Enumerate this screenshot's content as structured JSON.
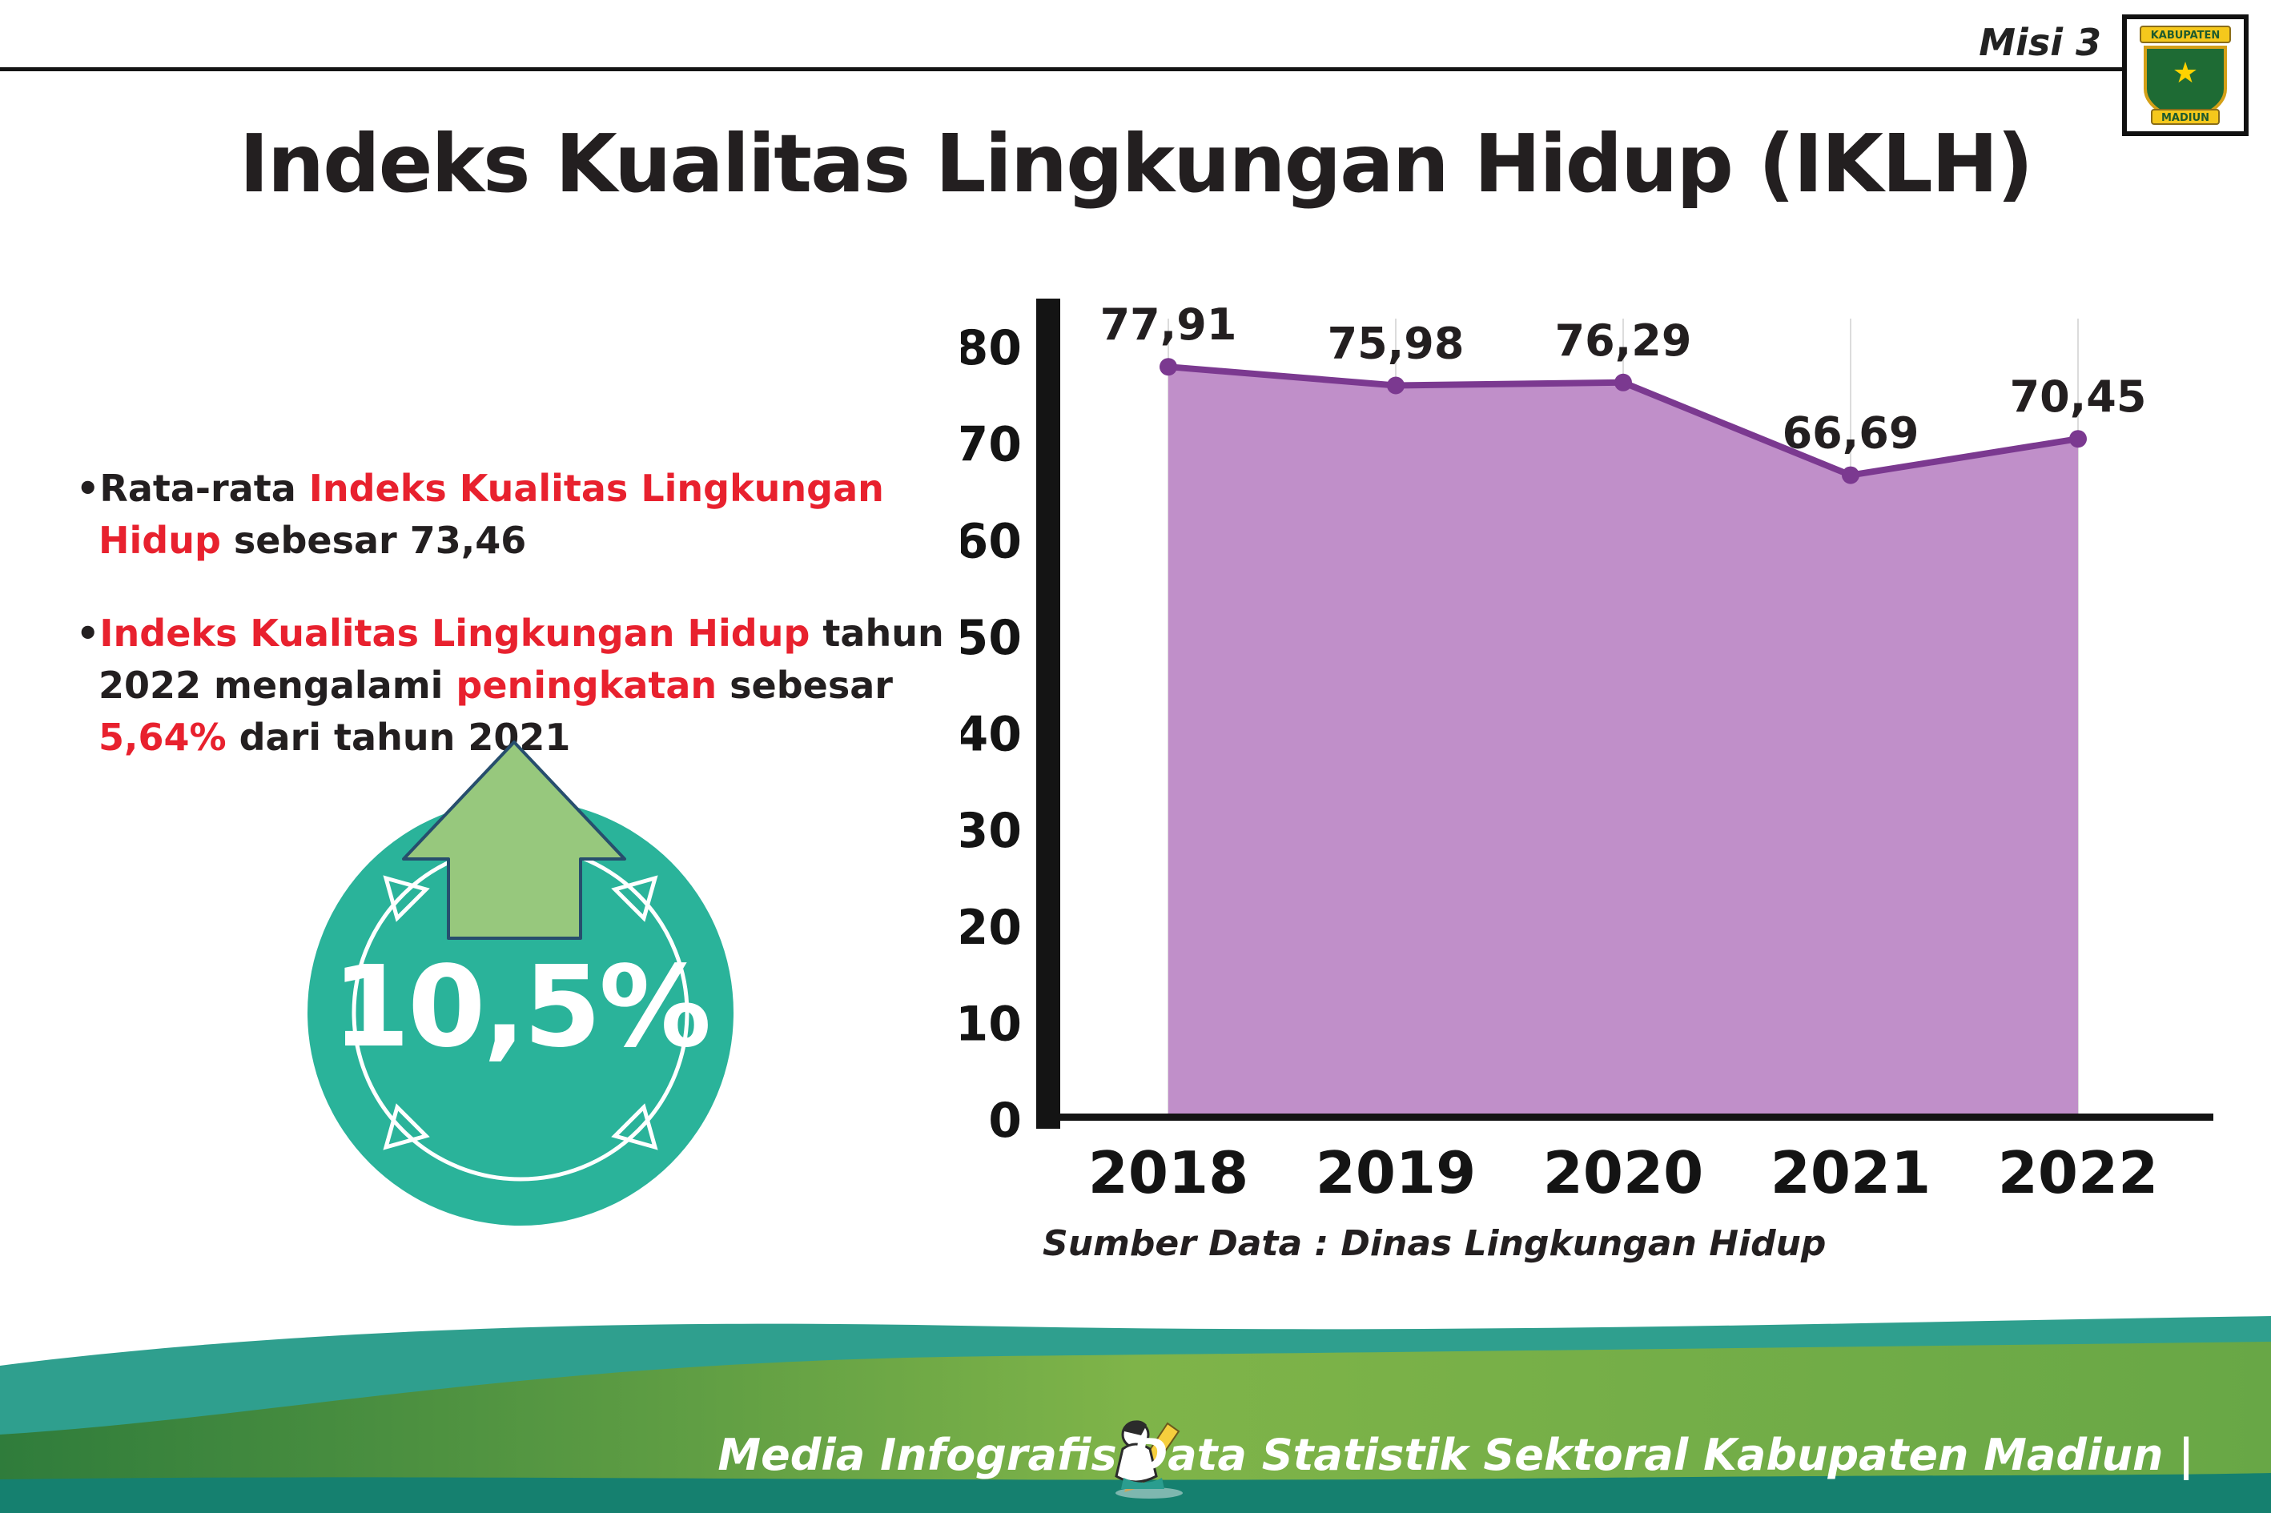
{
  "header": {
    "misi": "Misi 3",
    "title": "Indeks Kualitas Lingkungan Hidup (IKLH)",
    "logo": {
      "top": "KABUPATEN",
      "bottom": "MADIUN"
    }
  },
  "bullets": [
    {
      "segments": [
        {
          "t": "Rata-rata ",
          "c": "dark"
        },
        {
          "t": "Indeks Kualitas Lingkungan Hidup",
          "c": "red"
        },
        {
          "t": " sebesar 73,46",
          "c": "dark"
        }
      ]
    },
    {
      "segments": [
        {
          "t": "Indeks Kualitas Lingkungan Hidup",
          "c": "red"
        },
        {
          "t": " tahun 2022 mengalami ",
          "c": "dark"
        },
        {
          "t": "peningkatan",
          "c": "red"
        },
        {
          "t": " sebesar ",
          "c": "dark"
        },
        {
          "t": "5,64%",
          "c": "red"
        },
        {
          "t": " dari tahun 2021",
          "c": "dark"
        }
      ]
    }
  ],
  "highlight": {
    "value": "10,5%",
    "icon": "up-arrow"
  },
  "chart_data": {
    "type": "area",
    "title": "Indeks Kualitas Lingkungan Hidup (IKLH)",
    "categories": [
      "2018",
      "2019",
      "2020",
      "2021",
      "2022"
    ],
    "values": [
      77.91,
      75.98,
      76.29,
      66.69,
      70.45
    ],
    "point_labels": [
      "77,91",
      "75,98",
      "76,29",
      "66,69",
      "70,45"
    ],
    "xlabel": "",
    "ylabel": "",
    "ylim": [
      0,
      80
    ],
    "yticks": [
      0,
      10,
      20,
      30,
      40,
      50,
      60,
      70,
      80
    ],
    "grid": "vertical-light",
    "legend": "none",
    "source": "Sumber Data : Dinas Lingkungan Hidup",
    "colors": {
      "area_fill": "#c08fc9",
      "line": "#7b3990",
      "axis": "#141414",
      "grid": "#dcdcdc"
    }
  },
  "footer": {
    "caption": "Media Infografis Data Statistik Sektoral Kabupaten Madiun |"
  },
  "palette": {
    "red": "#e8212e",
    "dark": "#231f20",
    "teal_circle": "#2ab39a",
    "arrow_green": "#97c87d",
    "arrow_outline": "#274e6d",
    "footer_teal": "#2f9f8e",
    "footer_green_dark": "#2f7c3b",
    "footer_green_light": "#84b94b",
    "footer_strip": "#15806f"
  }
}
